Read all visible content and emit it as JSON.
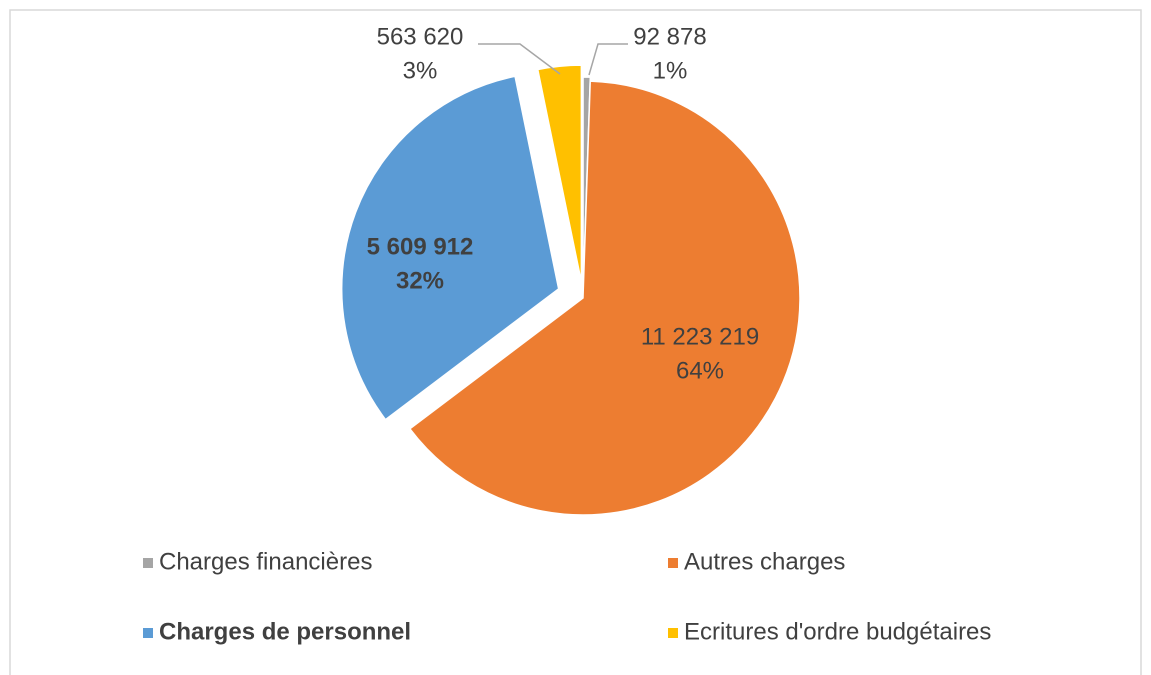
{
  "chart_data": {
    "type": "pie",
    "categories": [
      "Charges financières",
      "Autres charges",
      "Charges de personnel",
      "Ecritures d'ordre budgétaires"
    ],
    "values": [
      92878,
      11223219,
      5609912,
      563620
    ],
    "value_labels": [
      "92 878",
      "11 223 219",
      "5 609 912",
      "563 620"
    ],
    "percents": [
      1,
      64,
      32,
      3
    ],
    "percent_labels": [
      "1%",
      "64%",
      "32%",
      "3%"
    ],
    "colors": [
      "#a5a5a5",
      "#ed7d31",
      "#5b9bd5",
      "#ffc000"
    ],
    "legend": "bottom"
  }
}
